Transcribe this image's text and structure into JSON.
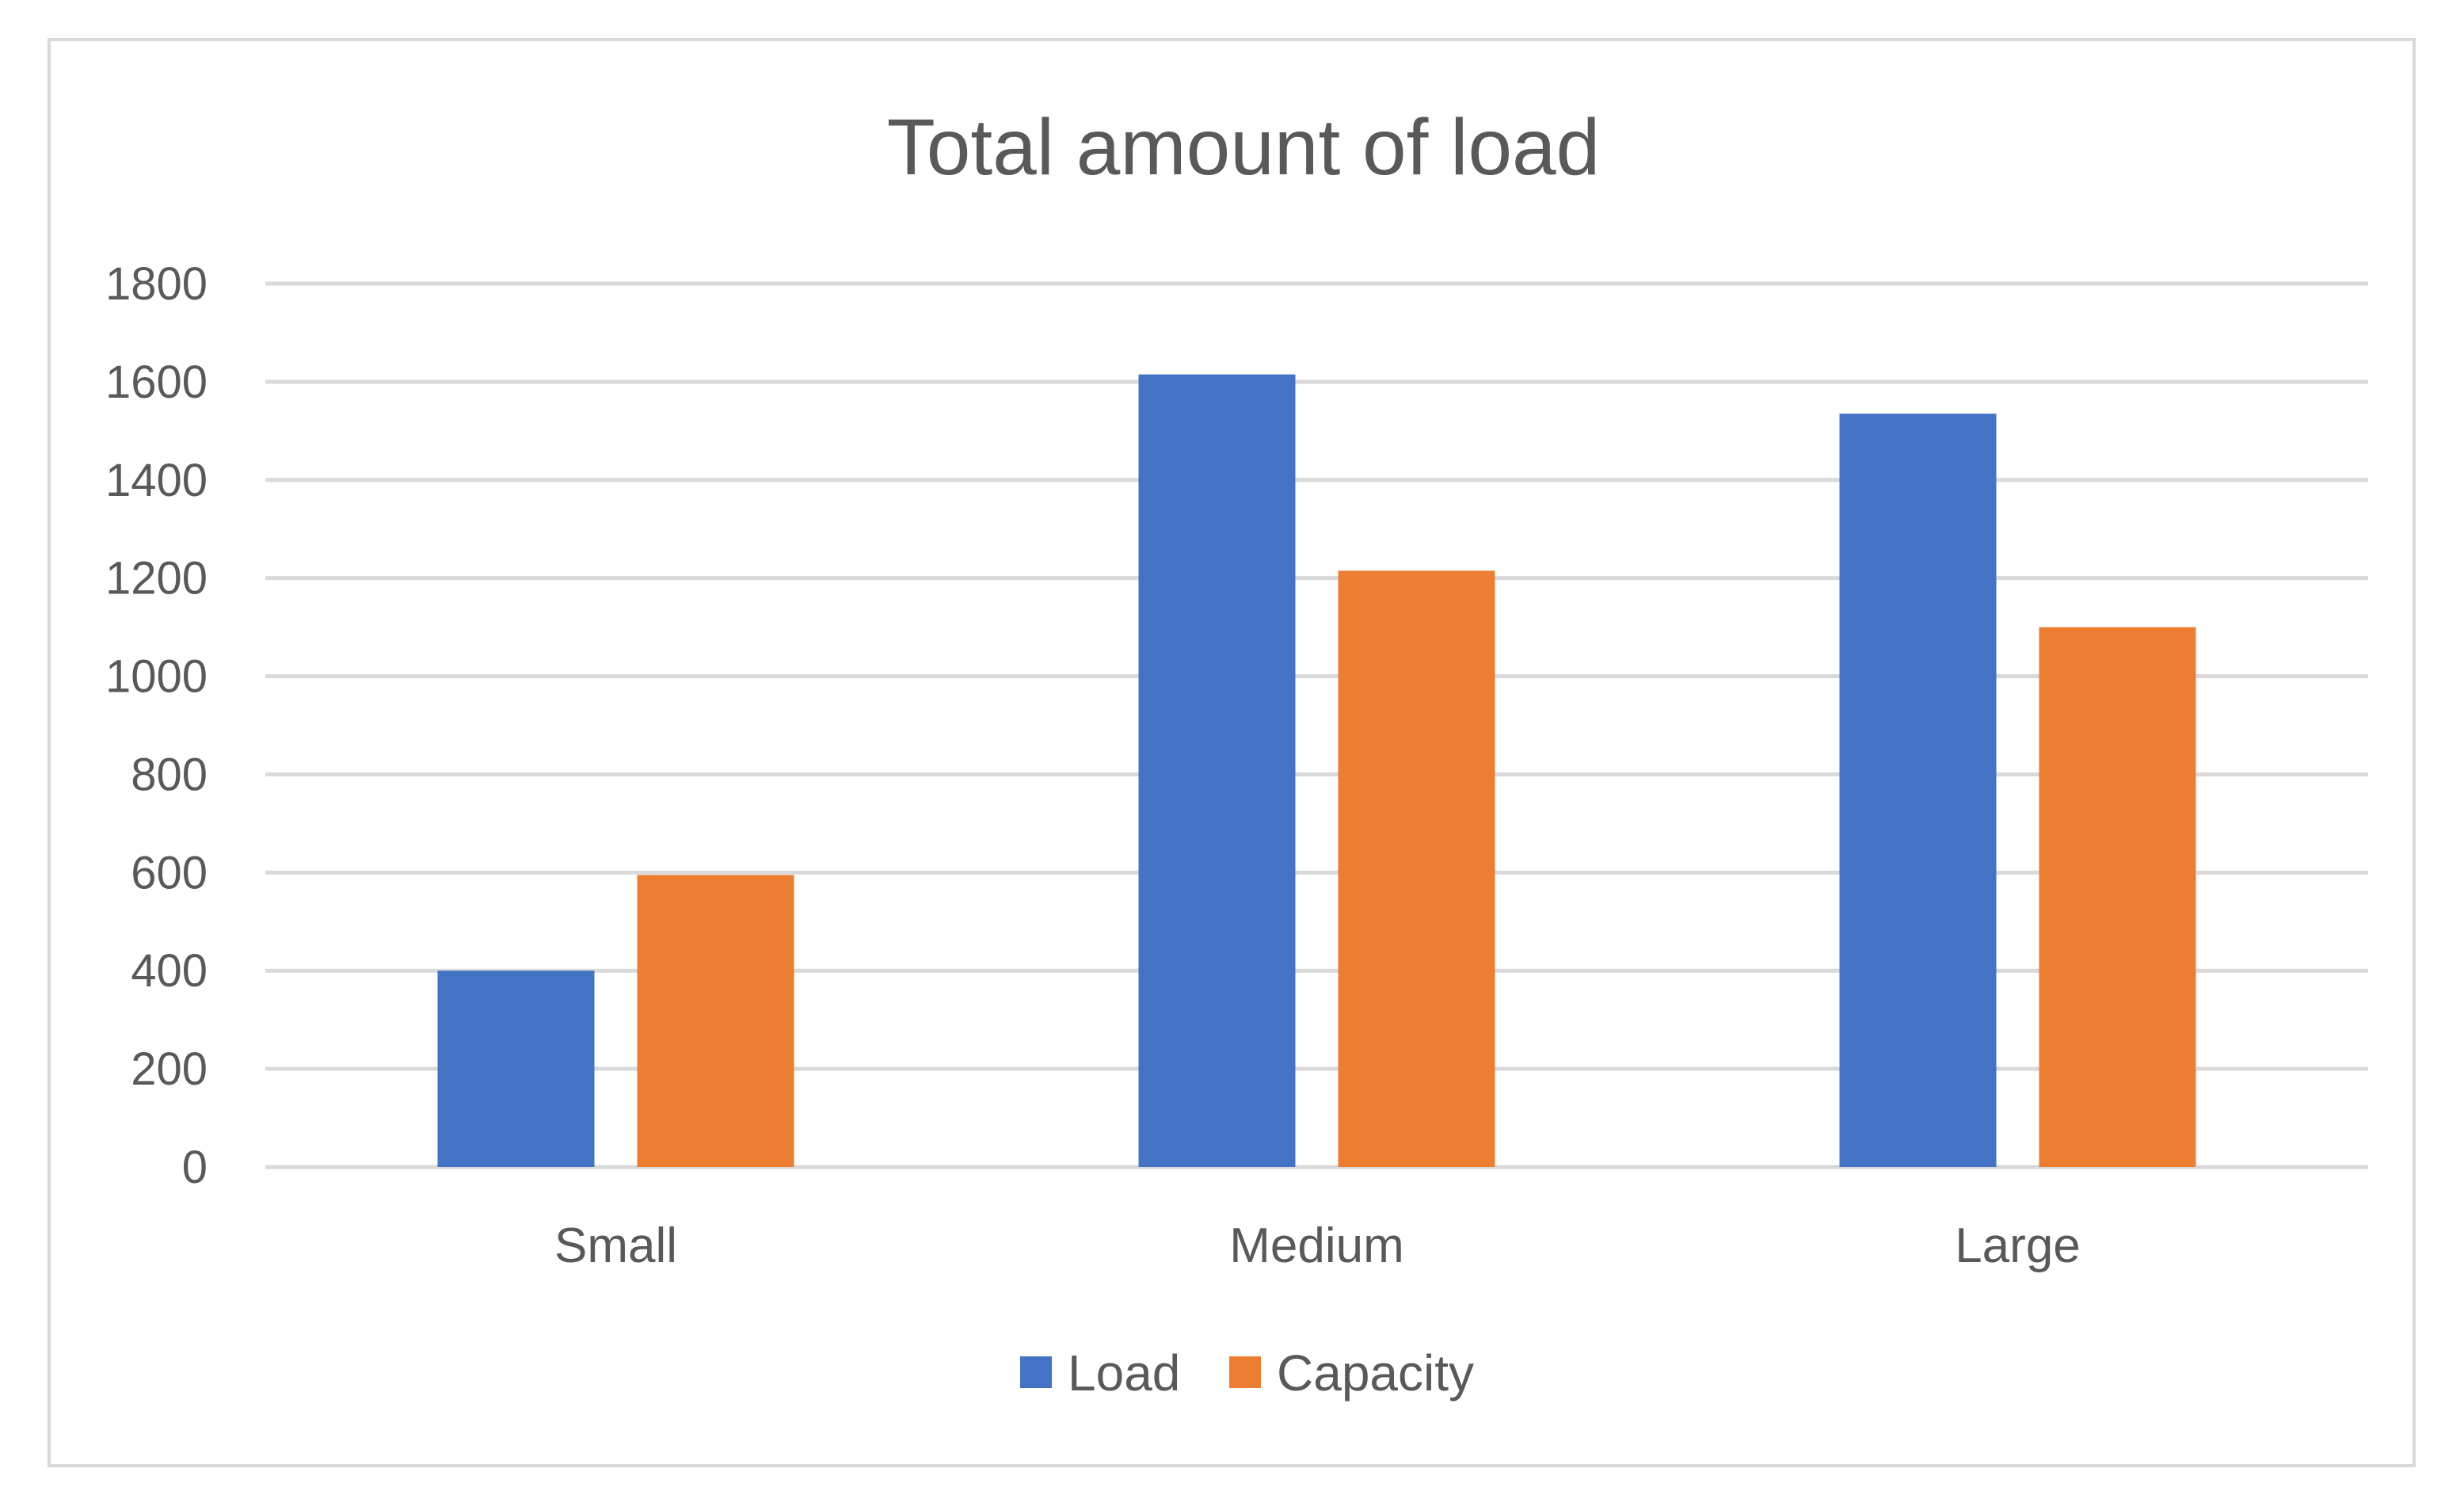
{
  "chart_data": {
    "type": "bar",
    "title": "Total amount of load",
    "xlabel": "",
    "ylabel": "",
    "categories": [
      "Small",
      "Medium",
      "Large"
    ],
    "series": [
      {
        "name": "Load",
        "values": [
          400,
          1615,
          1535
        ],
        "color": "#4472c4"
      },
      {
        "name": "Capacity",
        "values": [
          595,
          1215,
          1100
        ],
        "color": "#ed7d31"
      }
    ],
    "ylim": [
      0,
      1800
    ],
    "yticks": [
      0,
      200,
      400,
      600,
      800,
      1000,
      1200,
      1400,
      1600,
      1800
    ],
    "grid": true,
    "legend_position": "bottom"
  },
  "colors": {
    "gridline": "#d9d9d9",
    "text": "#595959",
    "frame": "#d9d9d9"
  }
}
